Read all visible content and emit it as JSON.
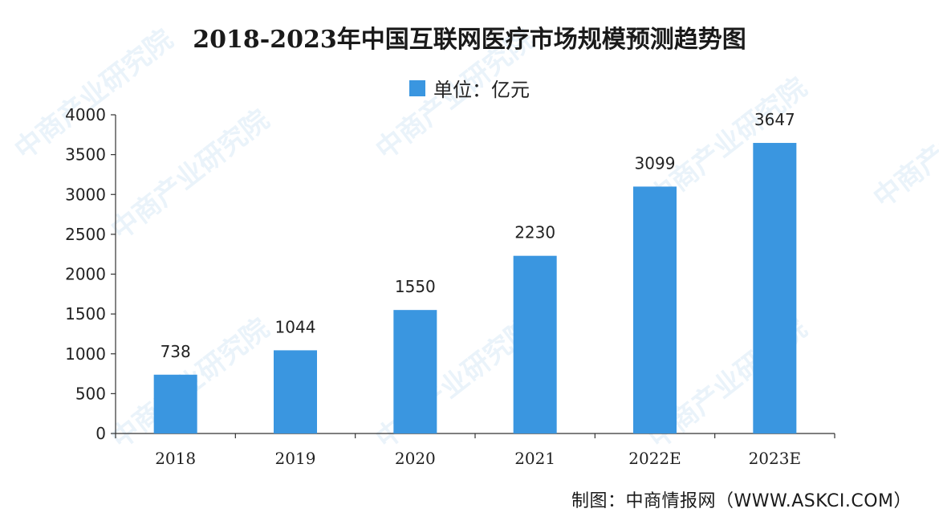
{
  "chart_data": {
    "type": "bar",
    "title": "2018-2023年中国互联网医疗市场规模预测趋势图",
    "legend": {
      "label": "单位：亿元",
      "placement": "top-center"
    },
    "categories": [
      "2018",
      "2019",
      "2020",
      "2021",
      "2022E",
      "2023E"
    ],
    "series": [
      {
        "values": [
          738,
          1044,
          1550,
          2230,
          3099,
          3647
        ]
      }
    ],
    "data_labels": [
      "738",
      "1044",
      "1550",
      "2230",
      "3099",
      "3647"
    ],
    "ylim": [
      0,
      4000
    ],
    "yticks": [
      0,
      500,
      1000,
      1500,
      2000,
      2500,
      3000,
      3500,
      4000
    ],
    "grid": false,
    "bar_color": "#3a96e0"
  },
  "source_note": "制图：中商情报网（WWW.ASKCI.COM）",
  "watermark_text": "中商产业研究院"
}
